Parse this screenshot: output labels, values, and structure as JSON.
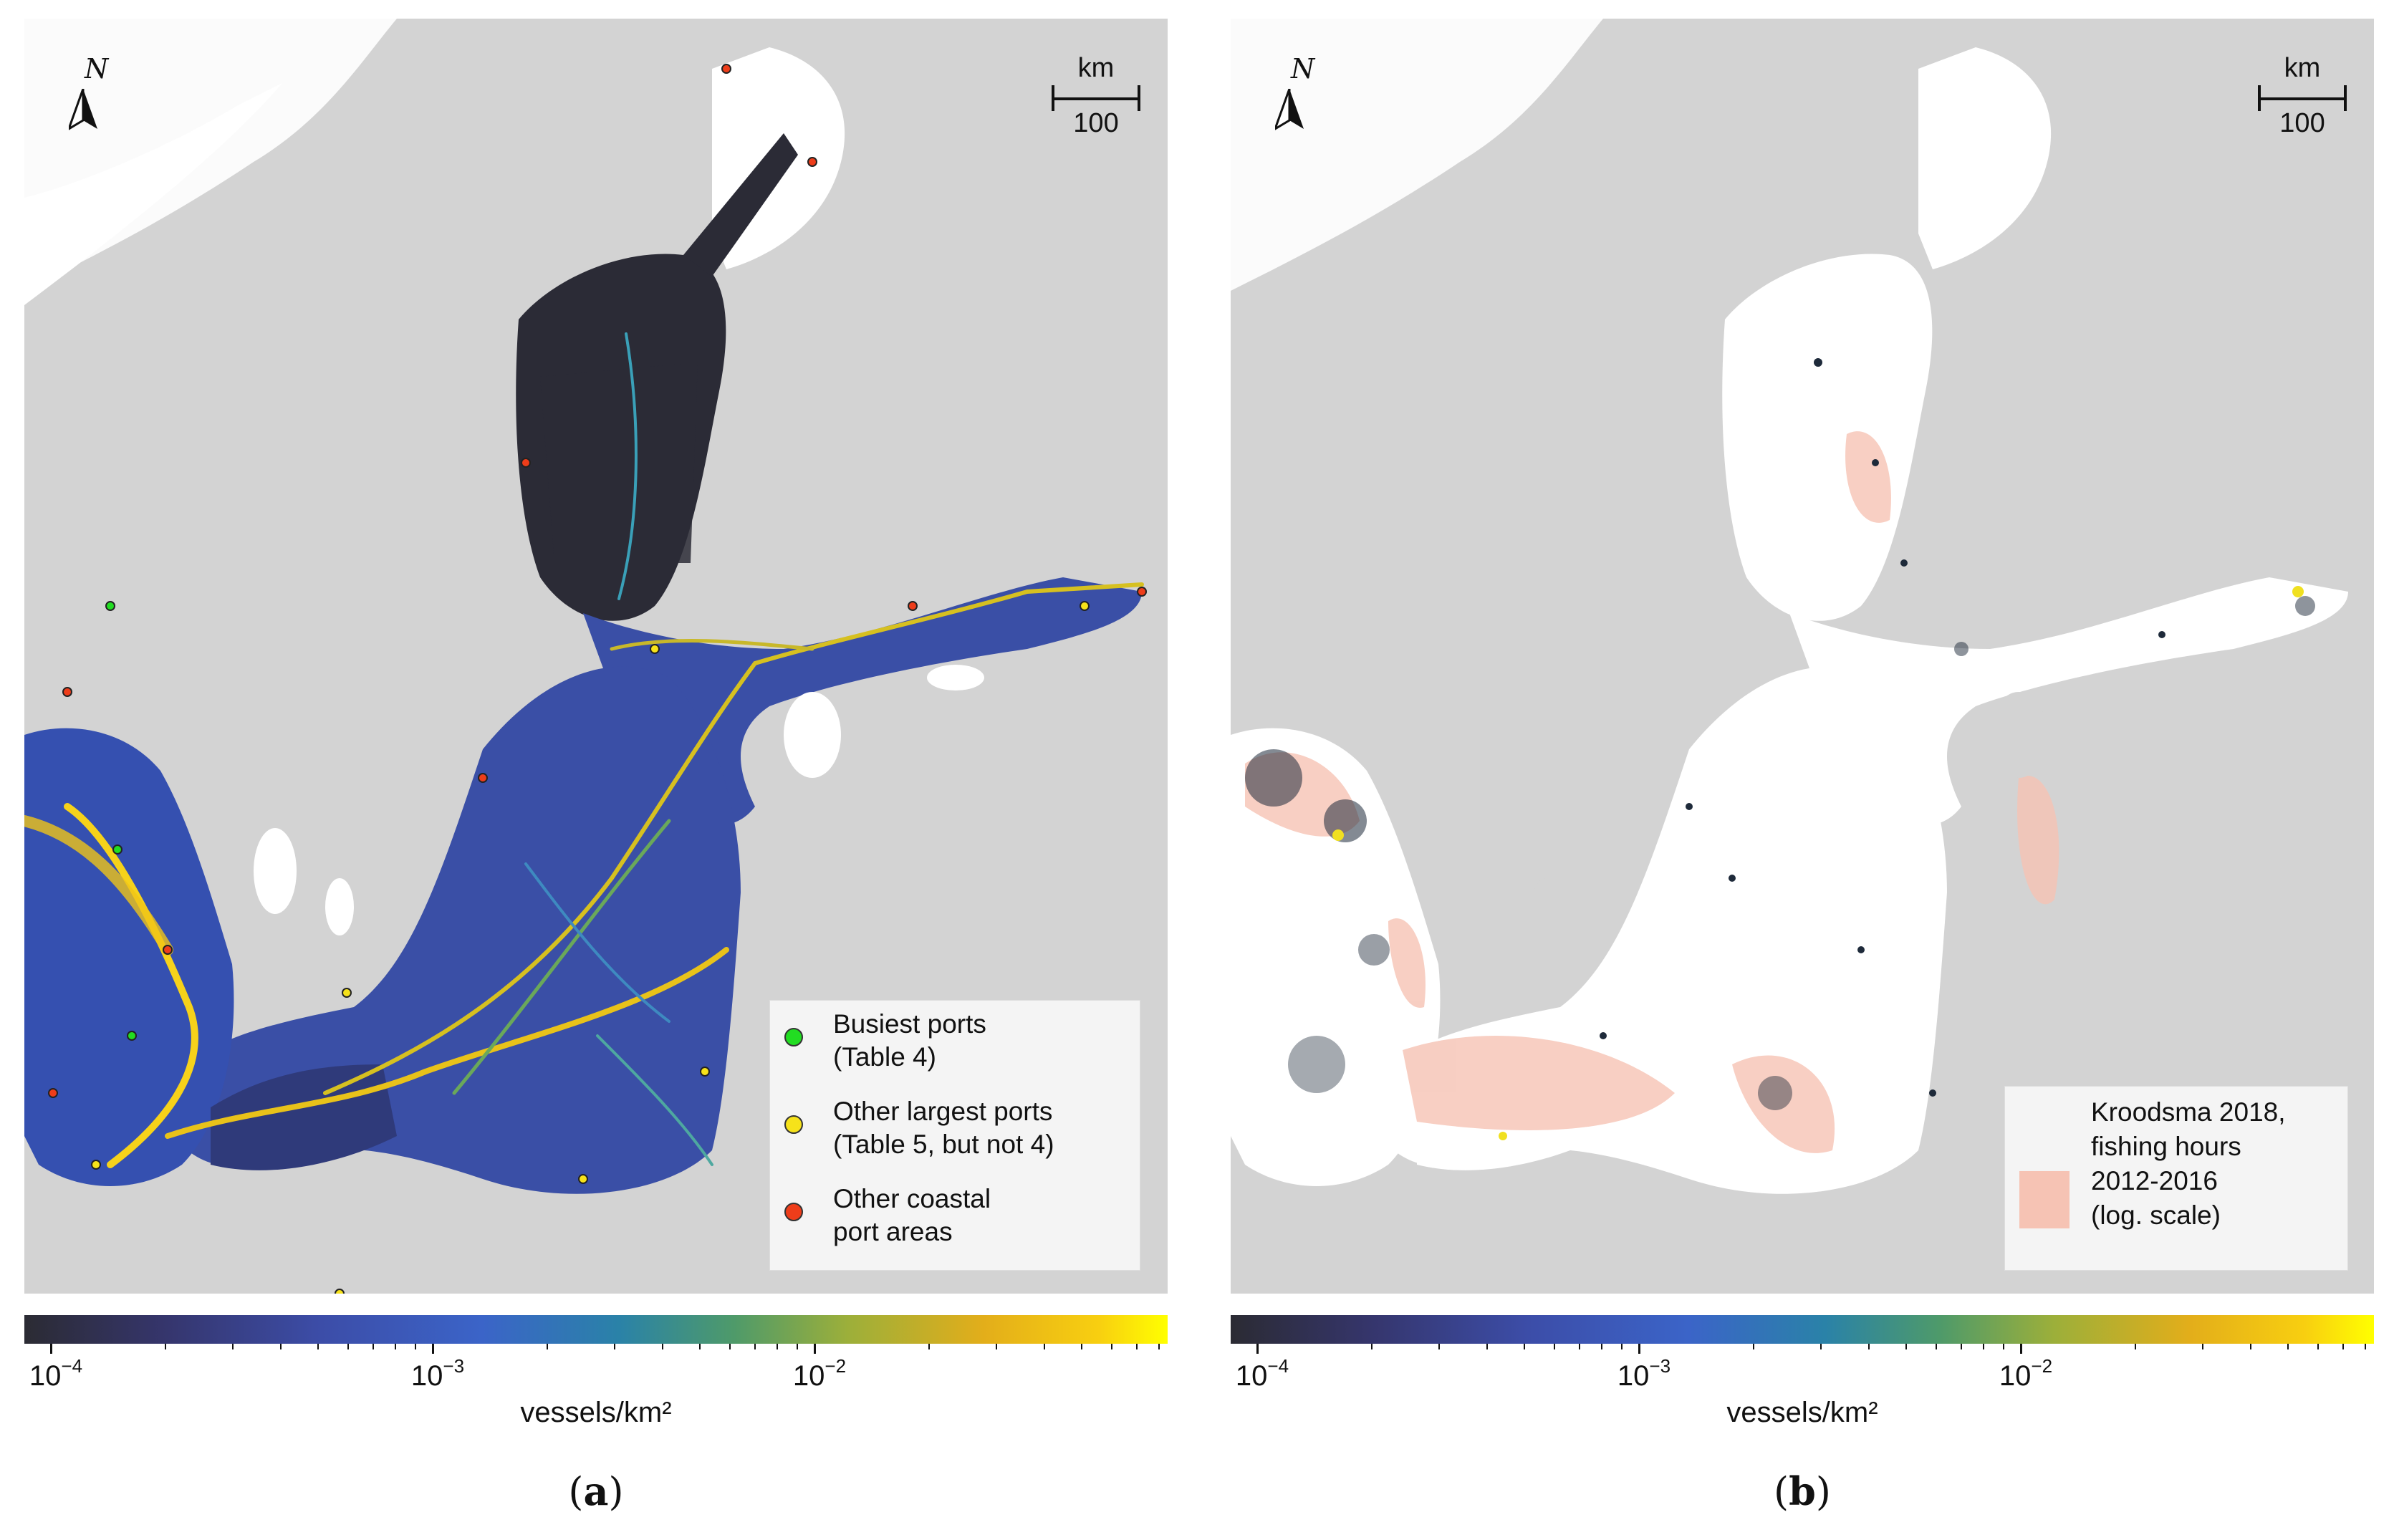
{
  "panels": {
    "a": {
      "subfigure_label": "a",
      "north_label": "N",
      "scale": {
        "unit": "km",
        "value": "100"
      },
      "legend": {
        "items": [
          {
            "text": "Busiest ports",
            "text2": "(Table 4)",
            "color": "#22dd22"
          },
          {
            "text": "Other largest ports",
            "text2": "(Table 5, but not 4)",
            "color": "#f6e21a"
          },
          {
            "text": "Other coastal",
            "text2": "port areas",
            "color": "#ee3d1a"
          }
        ]
      },
      "colorbar": {
        "label": "vessels/km²",
        "ticks": [
          {
            "base": "10",
            "exp": "−4"
          },
          {
            "base": "10",
            "exp": "−3"
          },
          {
            "base": "10",
            "exp": "−2"
          }
        ],
        "range_log10": [
          -4.1,
          -1.15
        ]
      }
    },
    "b": {
      "subfigure_label": "b",
      "north_label": "N",
      "scale": {
        "unit": "km",
        "value": "100"
      },
      "legend": {
        "lines": [
          "Kroodsma 2018,",
          "fishing hours",
          "2012-2016",
          "(log. scale)"
        ],
        "swatch_color": "#f6c3b4"
      },
      "colorbar": {
        "label": "vessels/km²",
        "ticks": [
          {
            "base": "10",
            "exp": "−4"
          },
          {
            "base": "10",
            "exp": "−3"
          },
          {
            "base": "10",
            "exp": "−2"
          }
        ],
        "range_log10": [
          -4.1,
          -1.15
        ]
      }
    }
  },
  "colors": {
    "land": "#d3d3d3",
    "sea_b": "#ffffff",
    "lakes": "#ffffff",
    "traffic_low": "#2b2b33",
    "traffic_mid": "#3b64c8",
    "traffic_high": "#f8cf10"
  }
}
